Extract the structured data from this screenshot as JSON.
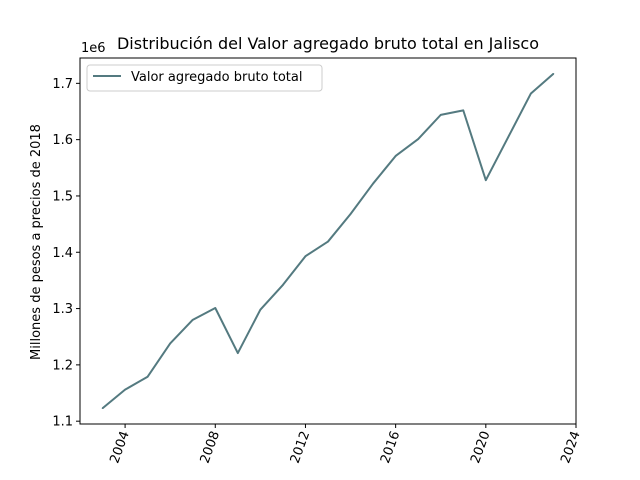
{
  "chart_data": {
    "type": "line",
    "title": "Distribución del Valor agregado bruto total en Jalisco",
    "xlabel": "",
    "ylabel": "Millones de pesos a precios de 2018",
    "y_offset_label": "1e6",
    "x": [
      2003,
      2004,
      2005,
      2006,
      2007,
      2008,
      2009,
      2010,
      2011,
      2012,
      2013,
      2014,
      2015,
      2016,
      2017,
      2018,
      2019,
      2020,
      2021,
      2022,
      2023
    ],
    "series": [
      {
        "name": "Valor agregado bruto total",
        "color": "#547a80",
        "values": [
          1.123,
          1.156,
          1.179,
          1.238,
          1.28,
          1.301,
          1.221,
          1.298,
          1.342,
          1.393,
          1.419,
          1.468,
          1.522,
          1.571,
          1.601,
          1.644,
          1.652,
          1.528,
          1.605,
          1.682,
          1.717
        ]
      }
    ],
    "xlim": [
      2002.0,
      2024.0
    ],
    "ylim": [
      1.095,
      1.745
    ],
    "x_ticks": [
      2004,
      2008,
      2012,
      2016,
      2020,
      2024
    ],
    "x_tick_labels": [
      "2004",
      "2008",
      "2012",
      "2016",
      "2020",
      "2024"
    ],
    "y_ticks": [
      1.1,
      1.2,
      1.3,
      1.4,
      1.5,
      1.6,
      1.7
    ],
    "y_tick_labels": [
      "1.1",
      "1.2",
      "1.3",
      "1.4",
      "1.5",
      "1.6",
      "1.7"
    ],
    "grid": false,
    "legend_position": "top-left"
  }
}
